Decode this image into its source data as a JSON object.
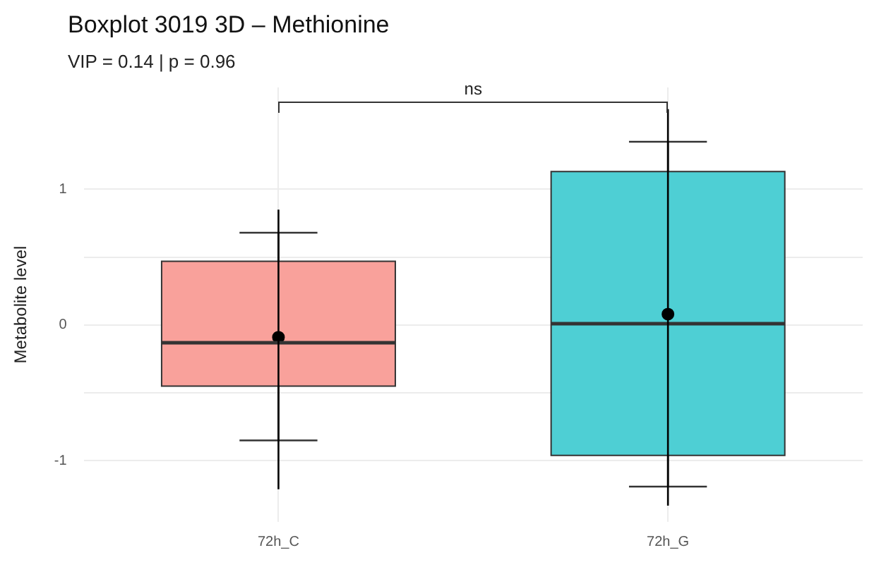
{
  "chart_data": {
    "type": "box",
    "title": "Boxplot  3019 3D – Methionine",
    "subtitle": "VIP = 0.14 | p = 0.96",
    "ylabel": "Metabolite level",
    "categories": [
      "72h_C",
      "72h_G"
    ],
    "colors": [
      "#f9a19b",
      "#4ecfd4"
    ],
    "boxes": [
      {
        "low": -0.85,
        "q1": -0.45,
        "median": -0.13,
        "q3": 0.47,
        "high": 0.68
      },
      {
        "low": -1.19,
        "q1": -0.96,
        "median": 0.01,
        "q3": 1.13,
        "high": 1.35
      }
    ],
    "series": [
      {
        "type": "scatter",
        "x": [
          "72h_C",
          "72h_G"
        ],
        "values": [
          -0.09,
          0.08
        ],
        "errors": [
          [
            -1.21,
            0.85
          ],
          [
            -1.33,
            1.59
          ]
        ],
        "color": "#000000"
      }
    ],
    "marker": "circle",
    "ylim": [
      -1.45,
      1.75
    ],
    "yticks": [
      -1,
      {
        "value": -0.5,
        "label": null
      },
      0,
      {
        "value": 0.5,
        "label": null
      },
      1
    ],
    "grid": true,
    "annotations": [
      "ns"
    ]
  }
}
